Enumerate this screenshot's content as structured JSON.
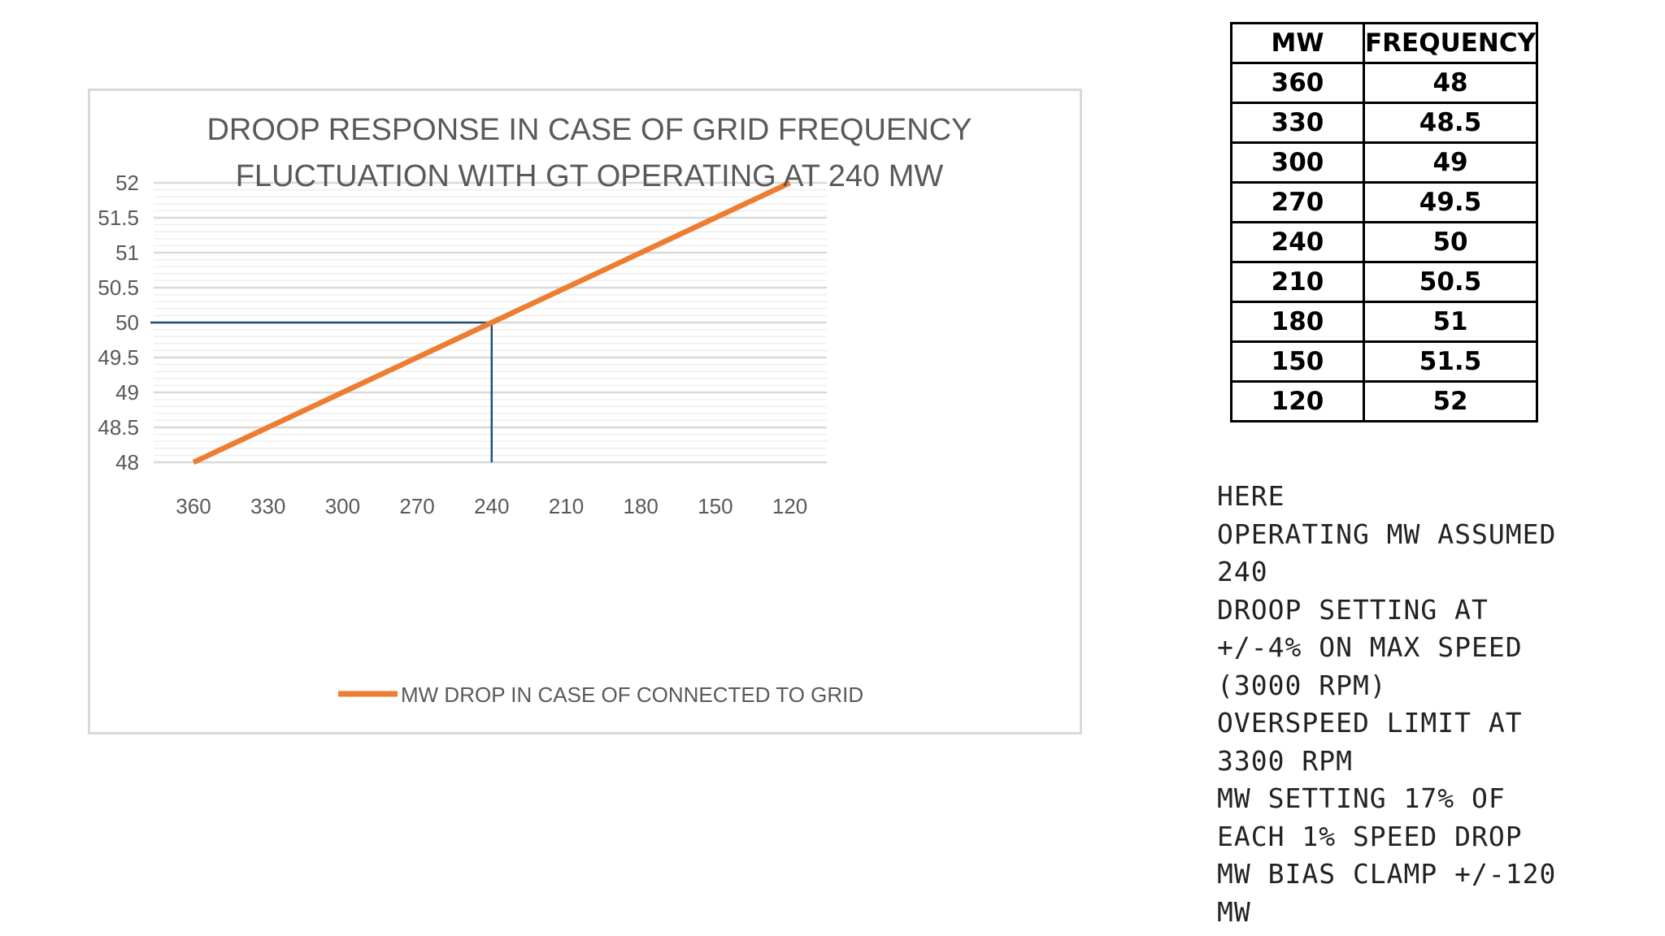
{
  "chart_data": {
    "type": "line",
    "title_lines": [
      "DROOP RESPONSE IN CASE OF GRID FREQUENCY",
      "FLUCTUATION  WITH GT OPERATING AT 240 MW"
    ],
    "xlabel": "",
    "ylabel": "",
    "x": [
      360,
      330,
      300,
      270,
      240,
      210,
      180,
      150,
      120
    ],
    "x_ticks": [
      "360",
      "330",
      "300",
      "270",
      "240",
      "210",
      "180",
      "150",
      "120"
    ],
    "y_ticks": [
      "52",
      "51.5",
      "51",
      "50.5",
      "50",
      "49.5",
      "49",
      "48.5",
      "48"
    ],
    "ylim": [
      48,
      52
    ],
    "series": [
      {
        "name": "MW DROP IN CASE OF CONNECTED TO GRID",
        "color": "#ed7d31",
        "values": [
          48,
          48.5,
          49,
          49.5,
          50,
          50.5,
          51,
          51.5,
          52
        ]
      }
    ],
    "reference_point": {
      "x": 240,
      "y": 50,
      "color": "#1f4e79"
    },
    "grid": true,
    "legend": "bottom"
  },
  "table": {
    "headers": [
      "MW",
      "FREQUENCY"
    ],
    "rows": [
      [
        "360",
        "48"
      ],
      [
        "330",
        "48.5"
      ],
      [
        "300",
        "49"
      ],
      [
        "270",
        "49.5"
      ],
      [
        "240",
        "50"
      ],
      [
        "210",
        "50.5"
      ],
      [
        "180",
        "51"
      ],
      [
        "150",
        "51.5"
      ],
      [
        "120",
        "52"
      ]
    ]
  },
  "notes": [
    "HERE",
    "OPERATING MW ASSUMED",
    "240",
    "DROOP SETTING AT",
    "+/-4% ON MAX SPEED",
    "(3000 RPM)",
    "OVERSPEED LIMIT AT",
    "3300 RPM",
    "MW SETTING 17% OF",
    "EACH 1% SPEED DROP",
    "MW BIAS CLAMP +/-120",
    "MW"
  ]
}
